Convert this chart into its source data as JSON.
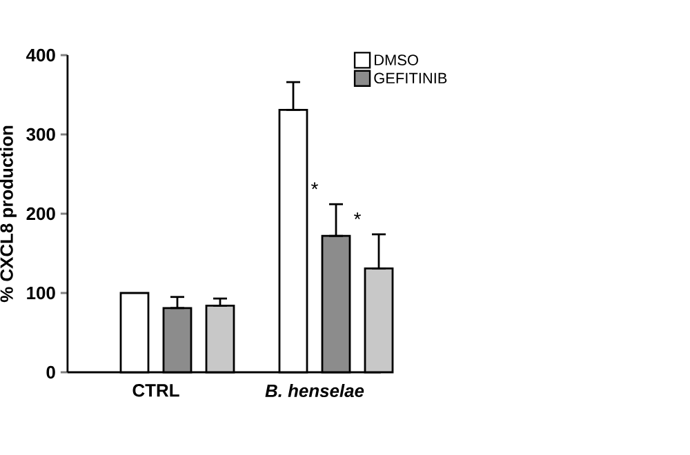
{
  "chart_data": {
    "type": "bar",
    "ylabel": "% CXCL8 production",
    "categories": [
      "CTRL",
      "*B. henselae*"
    ],
    "series": [
      {
        "name": "DMSO",
        "color": "#ffffff",
        "values": [
          100,
          331
        ],
        "errors": [
          null,
          [
            331,
            366
          ]
        ]
      },
      {
        "name": "GEFITINIB",
        "color": "#8c8c8c",
        "values": [
          81,
          172
        ],
        "errors": [
          [
            81,
            95
          ],
          [
            172,
            212
          ]
        ]
      },
      {
        "color": "#c8c8c8",
        "values": [
          84,
          131
        ],
        "errors": [
          [
            84,
            93
          ],
          [
            131,
            174
          ]
        ]
      }
    ],
    "ylim": [
      0,
      400
    ],
    "yticks": [
      0,
      100,
      200,
      300,
      400
    ],
    "legend": "top right",
    "grid": false,
    "annotations": [
      "*",
      "*"
    ]
  }
}
